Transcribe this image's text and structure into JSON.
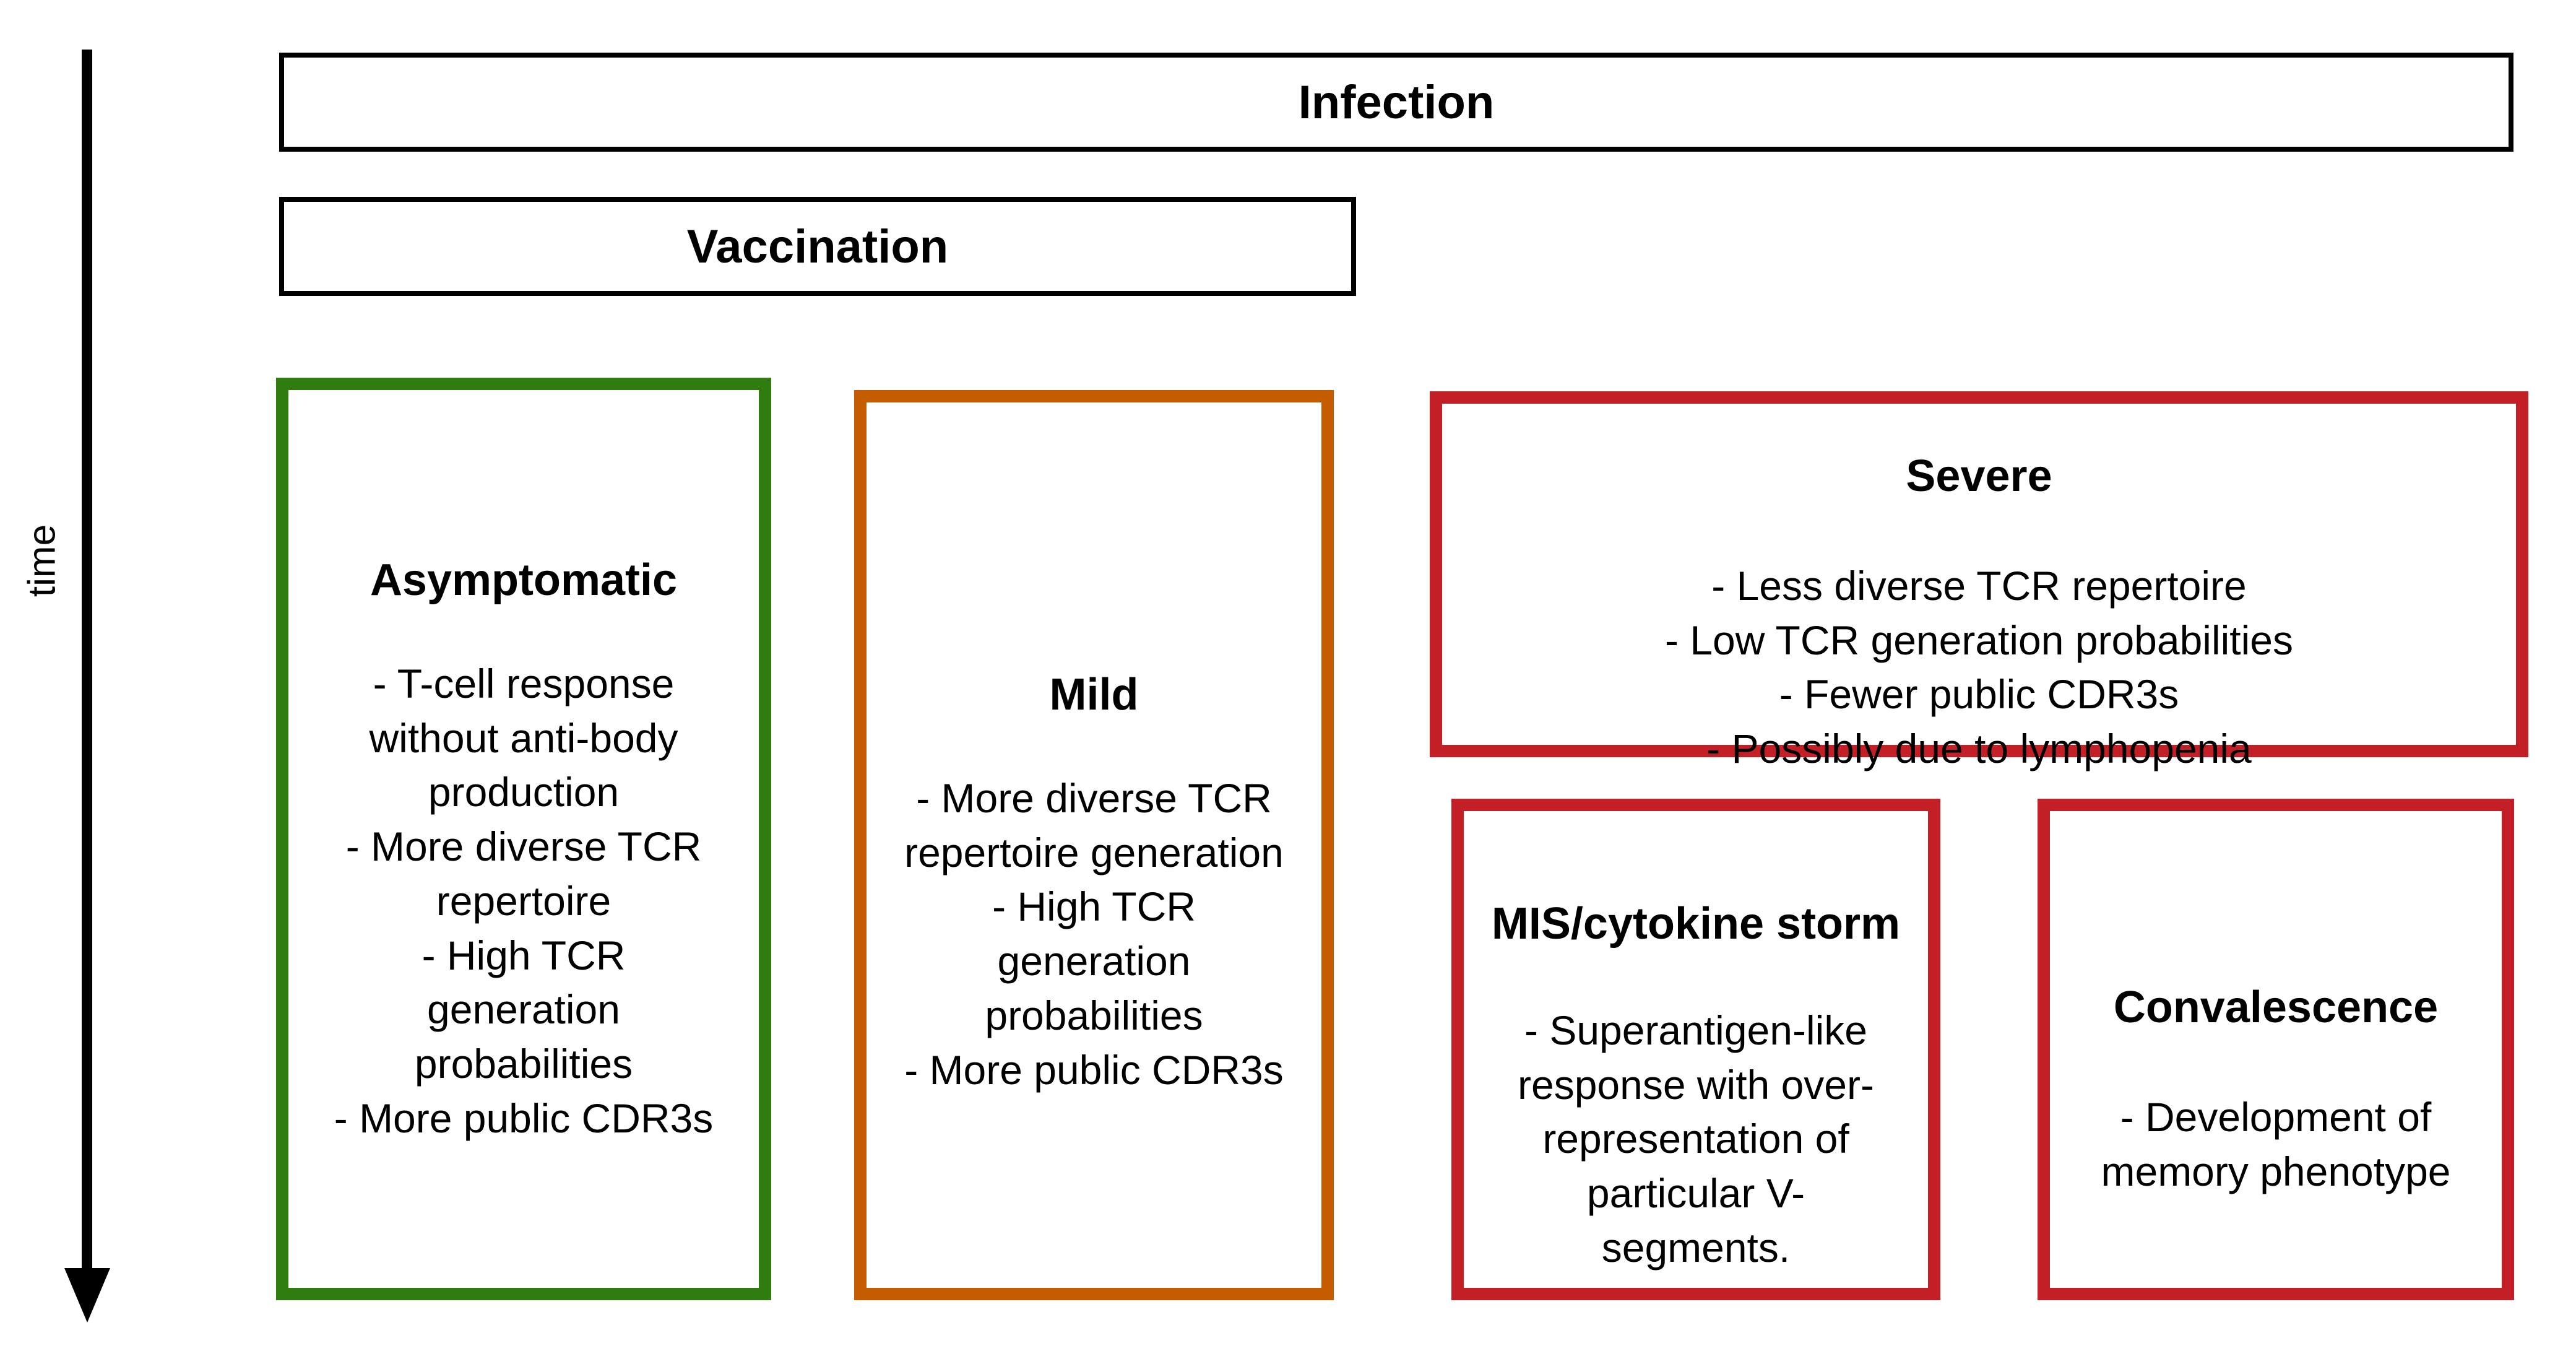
{
  "colors": {
    "asymptomatic_green": "#2f7d10",
    "mild_orange": "#c65c00",
    "severe_red": "#c22026",
    "axis_black": "#000000"
  },
  "time_axis": {
    "label": "time"
  },
  "bars": {
    "infection": {
      "label": "Infection"
    },
    "vaccination": {
      "label": "Vaccination"
    }
  },
  "boxes": [
    {
      "id": "asymptomatic",
      "title": "Asymptomatic",
      "border_color": "#2f7d10",
      "lines": [
        "- T-cell response",
        "without anti-body",
        "production",
        "- More diverse TCR",
        "repertoire",
        "- High TCR",
        "generation",
        "probabilities",
        "- More public CDR3s"
      ]
    },
    {
      "id": "mild",
      "title": "Mild",
      "border_color": "#c65c00",
      "lines": [
        "- More diverse TCR",
        "repertoire generation",
        "- High TCR",
        "generation",
        "probabilities",
        "- More public CDR3s"
      ]
    },
    {
      "id": "severe",
      "title": "Severe",
      "border_color": "#c22026",
      "lines": [
        "- Less diverse TCR repertoire",
        "- Low TCR generation probabilities",
        "- Fewer public CDR3s",
        "- Possibly due to lymphopenia"
      ]
    },
    {
      "id": "mis-cytokine-storm",
      "title": "MIS/cytokine storm",
      "border_color": "#c22026",
      "lines": [
        "- Superantigen-like",
        "response with over-",
        "representation of",
        "particular V-",
        "segments."
      ]
    },
    {
      "id": "convalescence",
      "title": "Convalescence",
      "border_color": "#c22026",
      "lines": [
        "- Development of",
        "memory phenotype"
      ]
    }
  ]
}
